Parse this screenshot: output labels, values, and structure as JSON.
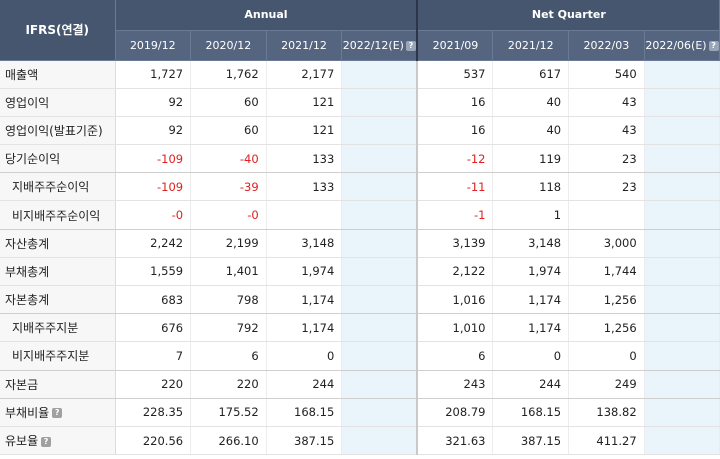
{
  "header": {
    "corner": "IFRS(연결)",
    "annual_label": "Annual",
    "quarter_label": "Net Quarter",
    "annual_periods": [
      "2019/12",
      "2020/12",
      "2021/12",
      "2022/12(E)"
    ],
    "quarter_periods": [
      "2021/09",
      "2021/12",
      "2022/03",
      "2022/06(E)"
    ],
    "help_glyph": "?"
  },
  "rows": [
    {
      "label": "매출액",
      "sub": false,
      "help": false,
      "values": [
        "1,727",
        "1,762",
        "2,177",
        "",
        "537",
        "617",
        "540",
        ""
      ]
    },
    {
      "label": "영업이익",
      "sub": false,
      "help": false,
      "values": [
        "92",
        "60",
        "121",
        "",
        "16",
        "40",
        "43",
        ""
      ]
    },
    {
      "label": "영업이익(발표기준)",
      "sub": false,
      "help": false,
      "values": [
        "92",
        "60",
        "121",
        "",
        "16",
        "40",
        "43",
        ""
      ]
    },
    {
      "label": "당기순이익",
      "sub": false,
      "help": false,
      "values": [
        "-109",
        "-40",
        "133",
        "",
        "-12",
        "119",
        "23",
        ""
      ]
    },
    {
      "label": "지배주주순이익",
      "sub": true,
      "help": false,
      "values": [
        "-109",
        "-39",
        "133",
        "",
        "-11",
        "118",
        "23",
        ""
      ]
    },
    {
      "label": "비지배주주순이익",
      "sub": true,
      "help": false,
      "values": [
        "-0",
        "-0",
        "",
        "",
        "-1",
        "1",
        "",
        ""
      ]
    },
    {
      "label": "자산총계",
      "sub": false,
      "help": false,
      "values": [
        "2,242",
        "2,199",
        "3,148",
        "",
        "3,139",
        "3,148",
        "3,000",
        ""
      ]
    },
    {
      "label": "부채총계",
      "sub": false,
      "help": false,
      "values": [
        "1,559",
        "1,401",
        "1,974",
        "",
        "2,122",
        "1,974",
        "1,744",
        ""
      ]
    },
    {
      "label": "자본총계",
      "sub": false,
      "help": false,
      "values": [
        "683",
        "798",
        "1,174",
        "",
        "1,016",
        "1,174",
        "1,256",
        ""
      ]
    },
    {
      "label": "지배주주지분",
      "sub": true,
      "help": false,
      "values": [
        "676",
        "792",
        "1,174",
        "",
        "1,010",
        "1,174",
        "1,256",
        ""
      ]
    },
    {
      "label": "비지배주주지분",
      "sub": true,
      "help": false,
      "values": [
        "7",
        "6",
        "0",
        "",
        "6",
        "0",
        "0",
        ""
      ]
    },
    {
      "label": "자본금",
      "sub": false,
      "help": false,
      "values": [
        "220",
        "220",
        "244",
        "",
        "243",
        "244",
        "249",
        ""
      ]
    },
    {
      "label": "부채비율",
      "sub": false,
      "help": true,
      "values": [
        "228.35",
        "175.52",
        "168.15",
        "",
        "208.79",
        "168.15",
        "138.82",
        ""
      ]
    },
    {
      "label": "유보율",
      "sub": false,
      "help": true,
      "values": [
        "220.56",
        "266.10",
        "387.15",
        "",
        "321.63",
        "387.15",
        "411.27",
        ""
      ]
    }
  ]
}
